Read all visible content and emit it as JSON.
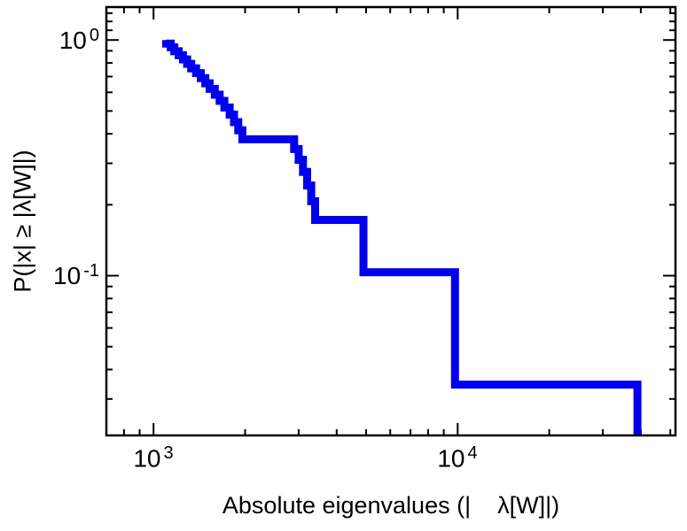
{
  "figure": {
    "background": "#ffffff",
    "frame_color": "#000000"
  },
  "chart_data": {
    "type": "line",
    "style": "empirical-ccdf-staircase",
    "title": "",
    "xlabel": "Absolute eigenvalues (|    λ[W]|)",
    "ylabel": "P(|x| ≥ |λ[W]|)",
    "x_scale": "log",
    "y_scale": "log",
    "xlim": [
      700,
      52000
    ],
    "ylim": [
      0.021,
      1.38
    ],
    "grid": false,
    "legend": null,
    "x_ticks": [
      {
        "value": 1000,
        "base": "10",
        "exp": "3"
      },
      {
        "value": 10000,
        "base": "10",
        "exp": "4"
      }
    ],
    "y_ticks": [
      {
        "value": 1,
        "base": "10",
        "exp": "0"
      },
      {
        "value": 0.1,
        "base": "10",
        "exp": "-1"
      }
    ],
    "x_minor_ticks": [
      800,
      900,
      2000,
      3000,
      4000,
      5000,
      6000,
      7000,
      8000,
      9000,
      20000,
      30000,
      40000,
      50000
    ],
    "y_minor_ticks": [
      0.03,
      0.04,
      0.05,
      0.06,
      0.07,
      0.08,
      0.09,
      0.2,
      0.3,
      0.4,
      0.5,
      0.6,
      0.7,
      0.8,
      0.9,
      1.1,
      1.2,
      1.3
    ],
    "series": [
      {
        "name": "absolute-eigenvalue-ccdf",
        "color": "#0000ee",
        "line_width": 9,
        "n_points": 29,
        "eigenvalues": [
          1100,
          1140,
          1170,
          1210,
          1250,
          1290,
          1330,
          1380,
          1430,
          1480,
          1530,
          1590,
          1650,
          1710,
          1780,
          1840,
          1900,
          1960,
          2900,
          3000,
          3100,
          3200,
          3300,
          3400,
          4900,
          4900,
          9800,
          9800,
          39000
        ]
      }
    ]
  }
}
